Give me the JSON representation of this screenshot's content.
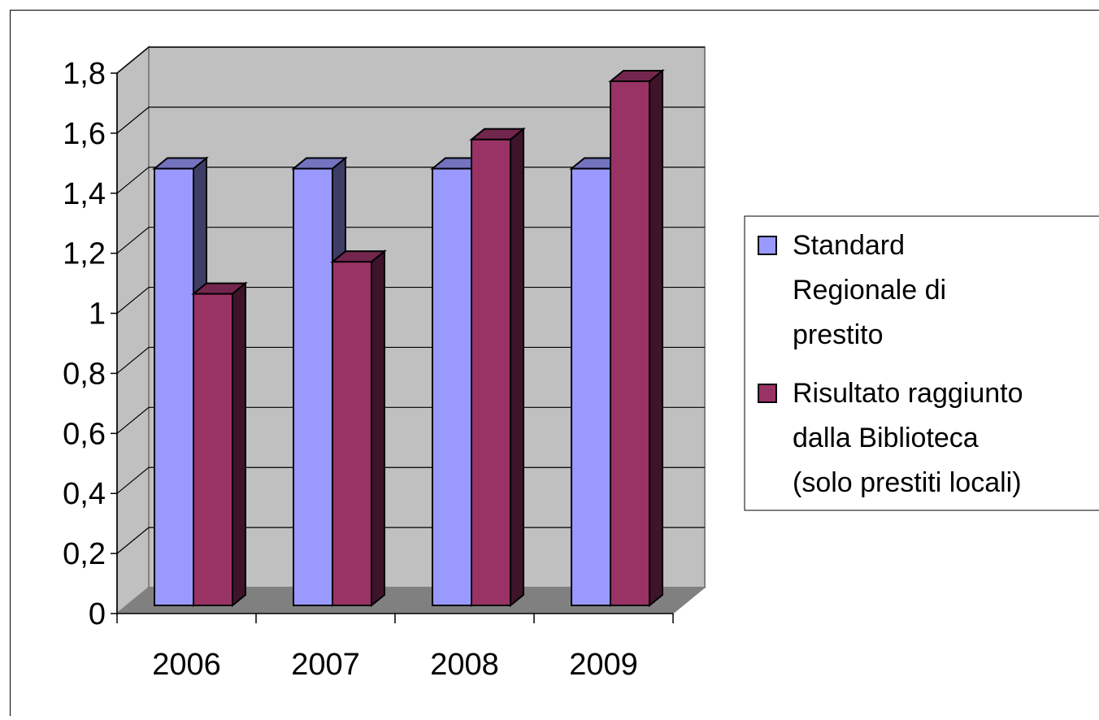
{
  "chart_data": {
    "type": "bar",
    "style": "3d-clustered-column",
    "categories": [
      "2006",
      "2007",
      "2008",
      "2009"
    ],
    "series": [
      {
        "name": "Standard Regionale di prestito",
        "values": [
          1.5,
          1.5,
          1.5,
          1.5
        ],
        "color": "#9999FF"
      },
      {
        "name": "Risultato raggiunto dalla Biblioteca (solo prestiti locali)",
        "values": [
          1.07,
          1.18,
          1.6,
          1.8
        ],
        "color": "#993366"
      }
    ],
    "yticks": [
      "0",
      "0,2",
      "0,4",
      "0,6",
      "0,8",
      "1",
      "1,2",
      "1,4",
      "1,6",
      "1,8"
    ],
    "ylim": [
      0,
      1.8
    ],
    "title": "",
    "xlabel": "",
    "ylabel": "",
    "grid": true,
    "legend_position": "right",
    "wall_color": "#C0C0C0",
    "floor_color": "#808080"
  },
  "legend": {
    "items": [
      {
        "lines": [
          "Standard",
          "Regionale di",
          "prestito"
        ]
      },
      {
        "lines": [
          "Risultato raggiunto",
          "dalla Biblioteca",
          "(solo prestiti locali)"
        ]
      }
    ]
  }
}
